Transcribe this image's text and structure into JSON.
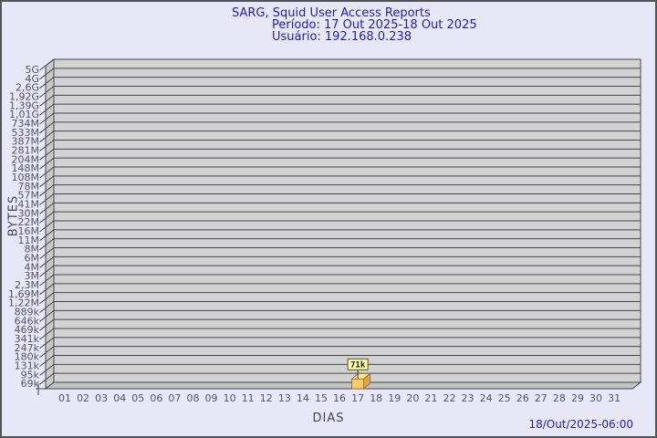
{
  "title": {
    "line1": "SARG, Squid User Access Reports",
    "line2": "Período: 17 Out 2025-18 Out 2025",
    "line3": "Usuário: 192.168.0.238"
  },
  "axes": {
    "y_title": "BYTES",
    "x_title": "DIAS"
  },
  "footer": {
    "generated": "18/Out/2025-06:00"
  },
  "chart_data": {
    "type": "bar",
    "title": "SARG, Squid User Access Reports",
    "subtitle": "Período: 17 Out 2025-18 Out 2025",
    "user": "Usuário: 192.168.0.238",
    "xlabel": "DIAS",
    "ylabel": "BYTES",
    "y_scale": "log",
    "grid": "horizontal",
    "style": "3d-bar",
    "y_tick_labels": [
      "5G",
      "4G",
      "2,6G",
      "1,92G",
      "1,39G",
      "1,01G",
      "734M",
      "533M",
      "387M",
      "281M",
      "204M",
      "148M",
      "108M",
      "78M",
      "57M",
      "41M",
      "30M",
      "22M",
      "16M",
      "11M",
      "8M",
      "6M",
      "4M",
      "3M",
      "2,3M",
      "1,69M",
      "1,22M",
      "889k",
      "646k",
      "469k",
      "341k",
      "247k",
      "180k",
      "131k",
      "95k",
      "69k"
    ],
    "x_tick_labels": [
      "01",
      "02",
      "03",
      "04",
      "05",
      "06",
      "07",
      "08",
      "09",
      "10",
      "11",
      "12",
      "13",
      "14",
      "15",
      "16",
      "17",
      "18",
      "19",
      "20",
      "21",
      "22",
      "23",
      "24",
      "25",
      "26",
      "27",
      "28",
      "29",
      "30",
      "31"
    ],
    "bars": [
      {
        "x": "17",
        "value_label": "71k",
        "value_bytes": 71000
      }
    ]
  },
  "colors": {
    "background": "#e7e7f7",
    "border": "#53535c",
    "title_text": "#1f1fa8",
    "tick_text": "#54555c",
    "axis_title_text": "#45454c",
    "plot_bg": "#d2d2d2",
    "wall": "#c7c7c7",
    "floor": "#c2c2c2",
    "grid_line": "#45454d",
    "bar_front": "#f8c96d",
    "bar_top": "#fde2a0",
    "bar_side": "#e2a246",
    "bar_outline": "#8f6a1e",
    "tooltip_bg": "#ffffa8",
    "tooltip_border": "#55551e",
    "tooltip_text": "#1a1a00",
    "connector": "#3a3a2a"
  }
}
